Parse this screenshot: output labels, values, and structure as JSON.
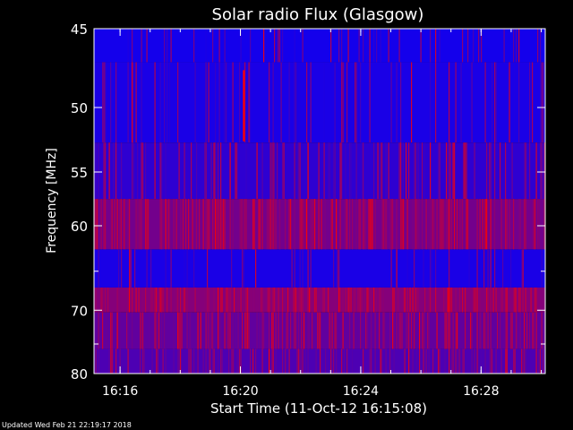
{
  "chart_data": {
    "type": "heatmap",
    "title": "Solar radio Flux (Glasgow)",
    "xlabel": "Start Time (11-Oct-12 16:15:08)",
    "ylabel": "Frequency [MHz]",
    "x_ticks": [
      "16:16",
      "16:20",
      "16:24",
      "16:28"
    ],
    "y_ticks": [
      45,
      50,
      55,
      60,
      70,
      80
    ],
    "xlim": [
      "16:15:08",
      "16:30:08"
    ],
    "ylim": [
      45,
      80
    ],
    "y_axis_scale": "reciprocal",
    "grid": false,
    "colormap": [
      "#0000ff",
      "#ff0000"
    ],
    "frequency_bands": [
      {
        "from_mhz": 45.0,
        "to_mhz": 47.0,
        "level": 0.08,
        "spike_rate": 0.18
      },
      {
        "from_mhz": 47.0,
        "to_mhz": 52.6,
        "level": 0.1,
        "spike_rate": 0.22
      },
      {
        "from_mhz": 52.6,
        "to_mhz": 57.4,
        "level": 0.18,
        "spike_rate": 0.3
      },
      {
        "from_mhz": 57.4,
        "to_mhz": 62.5,
        "level": 0.45,
        "spike_rate": 0.55
      },
      {
        "from_mhz": 62.5,
        "to_mhz": 67.0,
        "level": 0.1,
        "spike_rate": 0.2
      },
      {
        "from_mhz": 67.0,
        "to_mhz": 70.3,
        "level": 0.52,
        "spike_rate": 0.5
      },
      {
        "from_mhz": 70.3,
        "to_mhz": 75.8,
        "level": 0.38,
        "spike_rate": 0.45
      },
      {
        "from_mhz": 75.8,
        "to_mhz": 80.0,
        "level": 0.3,
        "spike_rate": 0.45
      }
    ],
    "burst": {
      "time": "16:20:05",
      "from_mhz": 47.5,
      "to_mhz": 52.5
    }
  },
  "footer": {
    "updated": "Updated Wed Feb 21 22:19:17 2018"
  }
}
